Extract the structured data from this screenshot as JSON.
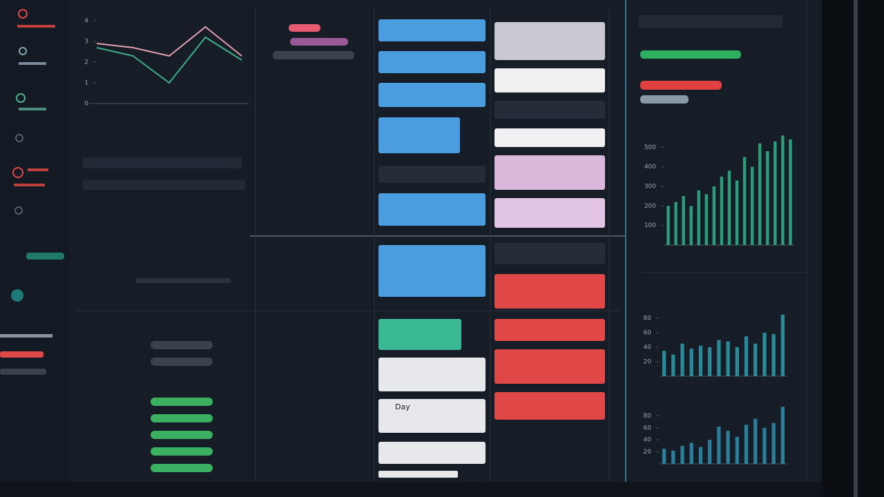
{
  "labels": {
    "day": "Day"
  },
  "chart_data": [
    {
      "type": "line",
      "categories": [
        null,
        null,
        null,
        null,
        null
      ],
      "ylim": [
        0,
        4
      ],
      "yticks": [
        0,
        1,
        2,
        3,
        4
      ],
      "series": [
        {
          "color": "#e4a0b0",
          "values": [
            2.9,
            2.7,
            2.3,
            3.7,
            2.3
          ]
        },
        {
          "color": "#3fb08a",
          "values": [
            2.7,
            2.3,
            1.0,
            3.2,
            2.1
          ]
        }
      ]
    },
    {
      "type": "bar",
      "color": "#2e9e7a",
      "categories": [
        null,
        null,
        null,
        null,
        null,
        null,
        null,
        null,
        null,
        null,
        null,
        null,
        null,
        null,
        null,
        null,
        null
      ],
      "values": [
        200,
        220,
        250,
        200,
        280,
        260,
        300,
        350,
        380,
        330,
        450,
        400,
        520,
        480,
        530,
        560,
        540
      ],
      "ylim": [
        0,
        600
      ],
      "yticks": [
        100,
        200,
        300,
        400,
        500
      ]
    },
    {
      "type": "bar",
      "color": "#2a8a9a",
      "categories": [
        null,
        null,
        null,
        null,
        null,
        null,
        null,
        null,
        null,
        null,
        null,
        null,
        null,
        null
      ],
      "values": [
        35,
        30,
        45,
        38,
        42,
        40,
        50,
        48,
        40,
        55,
        45,
        60,
        58,
        85
      ],
      "ylim": [
        0,
        100
      ],
      "yticks": [
        20,
        40,
        60,
        80
      ]
    },
    {
      "type": "bar",
      "color": "#2b7f9a",
      "categories": [
        null,
        null,
        null,
        null,
        null,
        null,
        null,
        null,
        null,
        null,
        null,
        null,
        null,
        null
      ],
      "values": [
        25,
        22,
        30,
        35,
        28,
        40,
        62,
        55,
        45,
        65,
        75,
        60,
        68,
        95
      ],
      "ylim": [
        0,
        100
      ],
      "yticks": [
        20,
        40,
        60,
        80
      ]
    }
  ]
}
